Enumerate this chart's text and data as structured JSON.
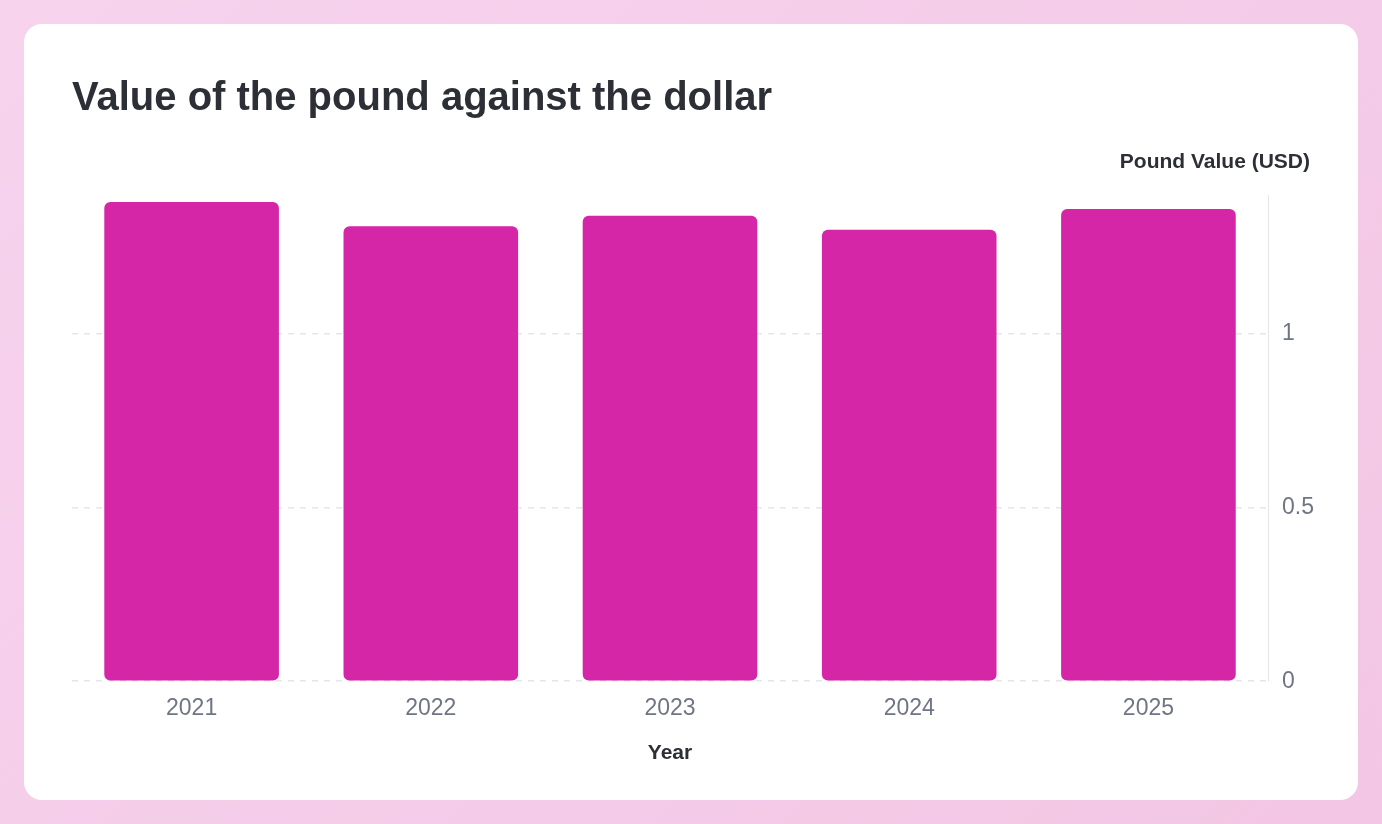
{
  "chart_data": {
    "type": "bar",
    "title": "Value of the pound against the dollar",
    "xlabel": "Year",
    "ylabel": "Pound Value (USD)",
    "categories": [
      "2021",
      "2022",
      "2023",
      "2024",
      "2025"
    ],
    "values": [
      1.38,
      1.31,
      1.34,
      1.3,
      1.36
    ],
    "color": "#d626a8",
    "ylim": [
      0,
      1.4
    ],
    "yticks": [
      0,
      0.5,
      1
    ],
    "grid": "y",
    "legend": false
  }
}
